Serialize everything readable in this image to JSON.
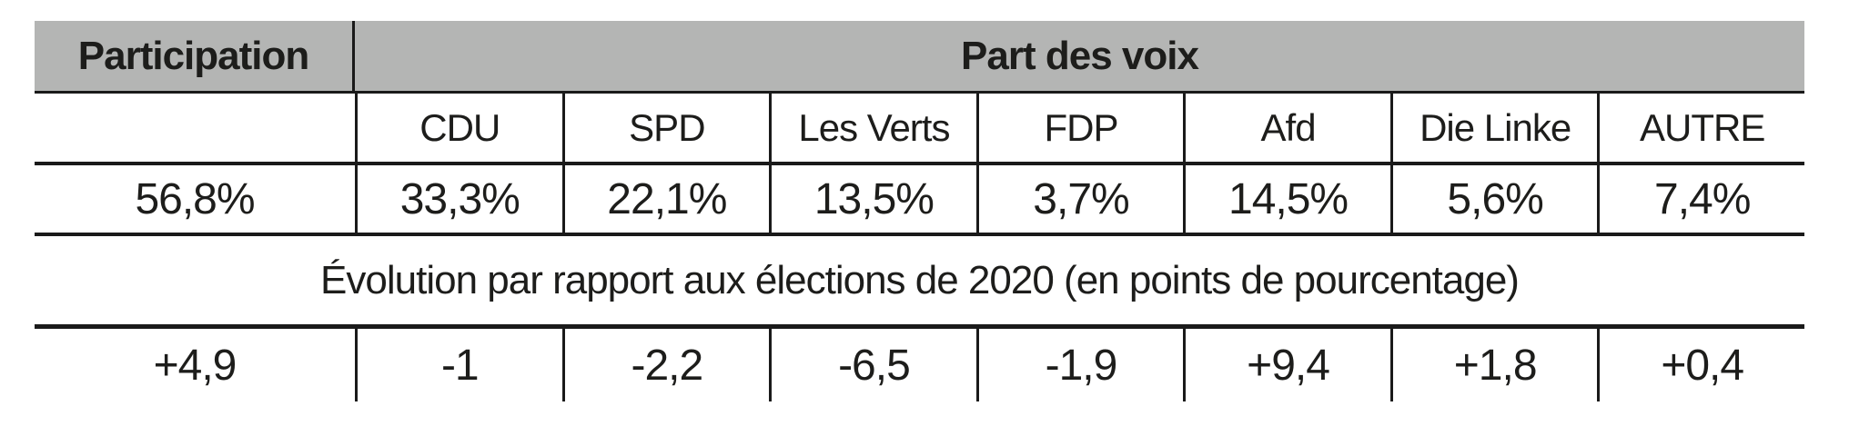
{
  "table": {
    "header": {
      "participation_label": "Participation",
      "part_des_voix_label": "Part des voix"
    },
    "parties": [
      "CDU",
      "SPD",
      "Les Verts",
      "FDP",
      "Afd",
      "Die Linke",
      "AUTRE"
    ],
    "participation_value": "56,8%",
    "vote_shares": [
      "33,3%",
      "22,1%",
      "13,5%",
      "3,7%",
      "14,5%",
      "5,6%",
      "7,4%"
    ],
    "evolution_title": "Évolution par rapport aux élections de 2020 (en points de pourcentage)",
    "participation_evolution": "+4,9",
    "evolutions": [
      "-1",
      "-2,2",
      "-6,5",
      "-1,9",
      "+9,4",
      "+1,8",
      "+0,4"
    ]
  },
  "colors": {
    "header_gray": "#b4b5b4",
    "line_black": "#1a1a1a",
    "text": "#1d1d1b"
  },
  "chart_data": {
    "type": "table",
    "title": "",
    "columns": [
      "Participation",
      "CDU",
      "SPD",
      "Les Verts",
      "FDP",
      "Afd",
      "Die Linke",
      "AUTRE"
    ],
    "rows": [
      {
        "label": "Part des voix",
        "values": [
          "56,8%",
          "33,3%",
          "22,1%",
          "13,5%",
          "3,7%",
          "14,5%",
          "5,6%",
          "7,4%"
        ]
      },
      {
        "label": "Évolution par rapport aux élections de 2020 (en points de pourcentage)",
        "values": [
          "+4,9",
          "-1",
          "-2,2",
          "-6,5",
          "-1,9",
          "+9,4",
          "+1,8",
          "+0,4"
        ]
      }
    ],
    "participation_pct": 56.8,
    "vote_share_pct": {
      "CDU": 33.3,
      "SPD": 22.1,
      "Les Verts": 13.5,
      "FDP": 3.7,
      "Afd": 14.5,
      "Die Linke": 5.6,
      "AUTRE": 7.4
    },
    "evolution_points_vs_2020": {
      "Participation": 4.9,
      "CDU": -1,
      "SPD": -2.2,
      "Les Verts": -6.5,
      "FDP": -1.9,
      "Afd": 9.4,
      "Die Linke": 1.8,
      "AUTRE": 0.4
    }
  }
}
